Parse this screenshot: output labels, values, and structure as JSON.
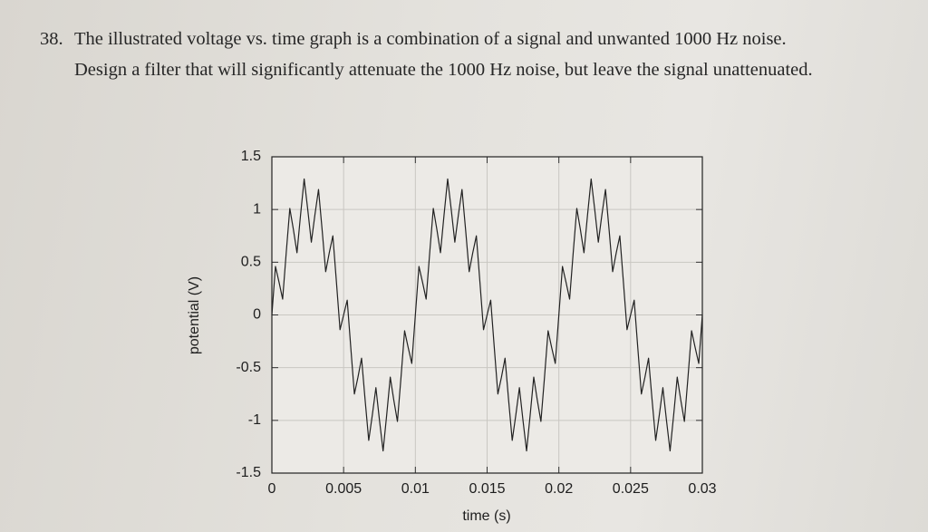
{
  "question": {
    "number": "38.",
    "text": "The illustrated voltage vs. time graph is a combination of a signal and unwanted 1000 Hz noise. Design a filter that will significantly attenuate the 1000 Hz noise, but leave the signal unattenuated."
  },
  "chart_data": {
    "type": "line",
    "xlabel": "time (s)",
    "ylabel": "potential (V)",
    "color": "#222222",
    "grid": true,
    "xlim": [
      0,
      0.03
    ],
    "xticks": [
      0,
      0.005,
      0.01,
      0.015,
      0.02,
      0.025,
      0.03
    ],
    "ylim": [
      -1.5,
      1.5
    ],
    "yticks": [
      -1.5,
      -1,
      -0.5,
      0,
      0.5,
      1,
      1.5
    ],
    "x": [
      0,
      0.00025,
      0.0005,
      0.00075,
      0.001,
      0.00125,
      0.0015,
      0.00175,
      0.002,
      0.00225,
      0.0025,
      0.00275,
      0.003,
      0.00325,
      0.0035,
      0.00375,
      0.004,
      0.00425,
      0.0045,
      0.00475,
      0.005,
      0.00525,
      0.0055,
      0.00575,
      0.006,
      0.00625,
      0.0065,
      0.00675,
      0.007,
      0.00725,
      0.0075,
      0.00775,
      0.008,
      0.00825,
      0.0085,
      0.00875,
      0.009,
      0.00925,
      0.0095,
      0.00975,
      0.01,
      0.01025,
      0.0105,
      0.01075,
      0.011,
      0.01125,
      0.0115,
      0.01175,
      0.012,
      0.01225,
      0.0125,
      0.01275,
      0.013,
      0.01325,
      0.0135,
      0.01375,
      0.014,
      0.01425,
      0.0145,
      0.01475,
      0.015,
      0.01525,
      0.0155,
      0.01575,
      0.016,
      0.01625,
      0.0165,
      0.01675,
      0.017,
      0.01725,
      0.0175,
      0.01775,
      0.018,
      0.01825,
      0.0185,
      0.01875,
      0.019,
      0.01925,
      0.0195,
      0.01975,
      0.02,
      0.02025,
      0.0205,
      0.02075,
      0.021,
      0.02125,
      0.0215,
      0.02175,
      0.022,
      0.02225,
      0.0225,
      0.02275,
      0.023,
      0.02325,
      0.0235,
      0.02375,
      0.024,
      0.02425,
      0.0245,
      0.02475,
      0.025,
      0.02525,
      0.0255,
      0.02575,
      0.026,
      0.02625,
      0.0265,
      0.02675,
      0.027,
      0.02725,
      0.0275,
      0.02775,
      0.028,
      0.02825,
      0.0285,
      0.02875,
      0.029,
      0.02925,
      0.0295,
      0.02975,
      0.03
    ],
    "values": [
      0,
      0.46,
      0.31,
      0.15,
      0.59,
      1.01,
      0.81,
      0.59,
      0.95,
      1.29,
      1,
      0.69,
      0.95,
      1.19,
      0.81,
      0.41,
      0.59,
      0.75,
      0.31,
      -0.14,
      0,
      0.14,
      -0.31,
      -0.75,
      -0.59,
      -0.41,
      -0.81,
      -1.19,
      -0.95,
      -0.69,
      -1,
      -1.29,
      -0.95,
      -0.59,
      -0.81,
      -1.01,
      -0.59,
      -0.15,
      -0.31,
      -0.46,
      0,
      0.46,
      0.31,
      0.15,
      0.59,
      1.01,
      0.81,
      0.59,
      0.95,
      1.29,
      1,
      0.69,
      0.95,
      1.19,
      0.81,
      0.41,
      0.59,
      0.75,
      0.31,
      -0.14,
      0,
      0.14,
      -0.31,
      -0.75,
      -0.59,
      -0.41,
      -0.81,
      -1.19,
      -0.95,
      -0.69,
      -1,
      -1.29,
      -0.95,
      -0.59,
      -0.81,
      -1.01,
      -0.59,
      -0.15,
      -0.31,
      -0.46,
      0,
      0.46,
      0.31,
      0.15,
      0.59,
      1.01,
      0.81,
      0.59,
      0.95,
      1.29,
      1,
      0.69,
      0.95,
      1.19,
      0.81,
      0.41,
      0.59,
      0.75,
      0.31,
      -0.14,
      0,
      0.14,
      -0.31,
      -0.75,
      -0.59,
      -0.41,
      -0.81,
      -1.19,
      -0.95,
      -0.69,
      -1,
      -1.29,
      -0.95,
      -0.59,
      -0.81,
      -1.01,
      -0.59,
      -0.15,
      -0.31,
      -0.46,
      0
    ]
  }
}
